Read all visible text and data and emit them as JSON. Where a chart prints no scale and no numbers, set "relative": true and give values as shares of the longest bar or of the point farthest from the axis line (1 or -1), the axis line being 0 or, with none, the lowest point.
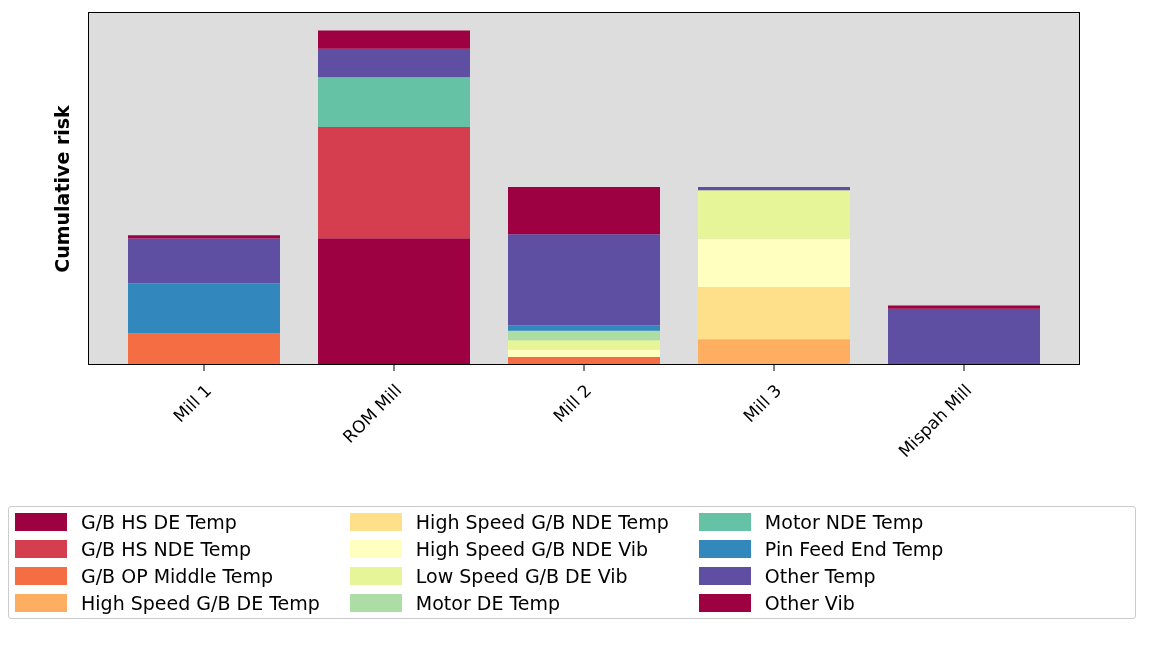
{
  "chart_data": {
    "type": "bar",
    "stacked": true,
    "relative": true,
    "ylabel": "Cumulative risk",
    "legend": "bottom",
    "grid": false,
    "categories": [
      "Mill 1",
      "ROM Mill",
      "Mill 2",
      "Mill 3",
      "Mispah Mill"
    ],
    "series": [
      {
        "name": "G/B HS DE Temp",
        "color": "#9e0142",
        "values": [
          null,
          0.379,
          null,
          null,
          null
        ]
      },
      {
        "name": "G/B HS NDE Temp",
        "color": "#d53e4f",
        "values": [
          null,
          0.332,
          null,
          null,
          null
        ]
      },
      {
        "name": "G/B OP Middle Temp",
        "color": "#f46d43",
        "values": [
          0.095,
          null,
          0.024,
          null,
          null
        ]
      },
      {
        "name": "High Speed G/B DE Temp",
        "color": "#fdae61",
        "values": [
          null,
          null,
          null,
          0.077,
          null
        ]
      },
      {
        "name": "High Speed G/B NDE Temp",
        "color": "#fee08b",
        "values": [
          null,
          null,
          null,
          0.156,
          null
        ]
      },
      {
        "name": "High Speed G/B NDE Vib",
        "color": "#ffffbf",
        "values": [
          null,
          null,
          0.022,
          0.144,
          null
        ]
      },
      {
        "name": "Low Speed G/B DE Vib",
        "color": "#e6f598",
        "values": [
          null,
          null,
          0.028,
          0.145,
          null
        ]
      },
      {
        "name": "Motor DE Temp",
        "color": "#abdda4",
        "values": [
          null,
          null,
          0.028,
          null,
          null
        ]
      },
      {
        "name": "Motor NDE Temp",
        "color": "#66c2a5",
        "values": [
          null,
          0.149,
          null,
          null,
          null
        ]
      },
      {
        "name": "Pin Feed End Temp",
        "color": "#3288bd",
        "values": [
          0.149,
          null,
          0.017,
          null,
          null
        ]
      },
      {
        "name": "Other Temp",
        "color": "#5e4fa2",
        "values": [
          0.134,
          0.085,
          0.272,
          0.01,
          0.168
        ]
      },
      {
        "name": "Other Vib",
        "color": "#9e0142",
        "values": [
          0.01,
          0.055,
          0.141,
          null,
          0.01
        ]
      }
    ]
  }
}
